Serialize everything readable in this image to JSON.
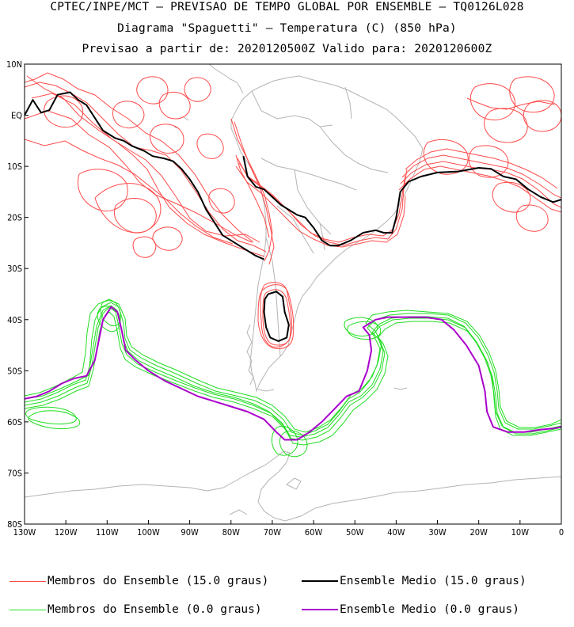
{
  "titles": {
    "line1": "CPTEC/INPE/MCT – PREVISAO DE TEMPO GLOBAL POR ENSEMBLE – TQ0126L028",
    "line2": "Diagrama \"Spaguetti\" – Temperatura (C) (850 hPa)",
    "line3": "Previsao a partir de: 2020120500Z  Valido para: 2020120600Z"
  },
  "map": {
    "lon_range": [
      -130,
      0
    ],
    "lat_range": [
      -80,
      10
    ],
    "lon_ticks": [
      {
        "value": -130,
        "label": "130W"
      },
      {
        "value": -120,
        "label": "120W"
      },
      {
        "value": -110,
        "label": "110W"
      },
      {
        "value": -100,
        "label": "100W"
      },
      {
        "value": -90,
        "label": "90W"
      },
      {
        "value": -80,
        "label": "80W"
      },
      {
        "value": -70,
        "label": "70W"
      },
      {
        "value": -60,
        "label": "60W"
      },
      {
        "value": -50,
        "label": "50W"
      },
      {
        "value": -40,
        "label": "40W"
      },
      {
        "value": -30,
        "label": "30W"
      },
      {
        "value": -20,
        "label": "20W"
      },
      {
        "value": -10,
        "label": "10W"
      },
      {
        "value": 0,
        "label": "0"
      }
    ],
    "lat_ticks": [
      {
        "value": 10,
        "label": "10N"
      },
      {
        "value": 0,
        "label": "EQ"
      },
      {
        "value": -10,
        "label": "10S"
      },
      {
        "value": -20,
        "label": "20S"
      },
      {
        "value": -30,
        "label": "30S"
      },
      {
        "value": -40,
        "label": "40S"
      },
      {
        "value": -50,
        "label": "50S"
      },
      {
        "value": -60,
        "label": "60S"
      },
      {
        "value": -70,
        "label": "70S"
      },
      {
        "value": -80,
        "label": "80S"
      }
    ],
    "colors": {
      "members_15": "#ff4a4a",
      "mean_15": "#000000",
      "members_0": "#22dd22",
      "mean_0": "#aa00cc",
      "coast": "#b4b4b4"
    },
    "mean_15": [
      [
        -130,
        0
      ],
      [
        -128,
        3
      ],
      [
        -126,
        0.5
      ],
      [
        -124,
        1
      ],
      [
        -122,
        4
      ],
      [
        -119,
        4.5
      ],
      [
        -117,
        3
      ],
      [
        -115,
        2
      ],
      [
        -113,
        -0.5
      ],
      [
        -111,
        -3
      ],
      [
        -108,
        -4.5
      ],
      [
        -106,
        -5
      ],
      [
        -104,
        -6
      ],
      [
        -101,
        -7
      ],
      [
        -99,
        -8
      ],
      [
        -96,
        -8.5
      ],
      [
        -94,
        -9
      ],
      [
        -92,
        -10.5
      ],
      [
        -90,
        -12.5
      ],
      [
        -88,
        -15
      ],
      [
        -86,
        -18.5
      ],
      [
        -84,
        -21
      ],
      [
        -82,
        -23.5
      ],
      [
        -80,
        -24.5
      ],
      [
        -78,
        -25.5
      ],
      [
        -76,
        -26.5
      ],
      [
        -74,
        -27.5
      ],
      [
        -72,
        -28.2
      ]
    ],
    "mean_15_b": [
      [
        -77,
        -8
      ],
      [
        -76,
        -12
      ],
      [
        -74,
        -14
      ],
      [
        -72,
        -14.5
      ],
      [
        -70,
        -16
      ],
      [
        -68,
        -17.5
      ],
      [
        -66,
        -18.5
      ],
      [
        -64,
        -19.5
      ],
      [
        -62,
        -20
      ],
      [
        -60,
        -22
      ],
      [
        -58,
        -24.5
      ],
      [
        -56,
        -25.5
      ],
      [
        -54,
        -25.5
      ],
      [
        -51,
        -24.5
      ],
      [
        -48,
        -23
      ],
      [
        -45,
        -22.5
      ],
      [
        -43,
        -23
      ],
      [
        -41,
        -23
      ],
      [
        -40,
        -20
      ],
      [
        -39,
        -15
      ],
      [
        -37,
        -13
      ],
      [
        -34,
        -12
      ],
      [
        -30,
        -11.2
      ],
      [
        -25,
        -11
      ],
      [
        -20,
        -10.3
      ],
      [
        -17,
        -10.5
      ],
      [
        -14,
        -12
      ],
      [
        -11,
        -12.5
      ],
      [
        -8,
        -14.5
      ],
      [
        -5,
        -16
      ],
      [
        -2,
        -17
      ],
      [
        0,
        -16.5
      ]
    ],
    "mean_15_loop": [
      [
        -71,
        -35
      ],
      [
        -69,
        -34.5
      ],
      [
        -67.5,
        -35.5
      ],
      [
        -67,
        -38.5
      ],
      [
        -66,
        -41
      ],
      [
        -66.5,
        -43.5
      ],
      [
        -68.5,
        -44.2
      ],
      [
        -70.5,
        -43.5
      ],
      [
        -71.5,
        -41.5
      ],
      [
        -72,
        -38.5
      ],
      [
        -71.8,
        -36
      ],
      [
        -71,
        -35
      ]
    ],
    "mean_0": [
      [
        -130,
        -55.5
      ],
      [
        -127,
        -55
      ],
      [
        -124,
        -54
      ],
      [
        -121,
        -52.5
      ],
      [
        -118,
        -51.5
      ],
      [
        -115,
        -51
      ],
      [
        -113,
        -48
      ],
      [
        -112,
        -44
      ],
      [
        -111,
        -40
      ],
      [
        -109,
        -37.5
      ],
      [
        -107.5,
        -38.5
      ],
      [
        -106.5,
        -42
      ],
      [
        -105.5,
        -46
      ],
      [
        -103,
        -48
      ],
      [
        -100,
        -50
      ],
      [
        -96,
        -52
      ],
      [
        -92,
        -53.5
      ],
      [
        -88,
        -55
      ],
      [
        -84,
        -56
      ],
      [
        -80,
        -57
      ],
      [
        -76,
        -58
      ],
      [
        -72,
        -59.5
      ],
      [
        -69,
        -62
      ],
      [
        -67,
        -63.5
      ],
      [
        -64,
        -63.5
      ],
      [
        -61,
        -62
      ],
      [
        -58,
        -60
      ],
      [
        -55,
        -57.5
      ],
      [
        -52,
        -55
      ],
      [
        -49,
        -54
      ],
      [
        -47,
        -50
      ],
      [
        -46,
        -46
      ],
      [
        -46.5,
        -43
      ],
      [
        -47.5,
        -42
      ],
      [
        -48,
        -41.5
      ],
      [
        -47,
        -41
      ],
      [
        -45,
        -40
      ],
      [
        -42,
        -39.5
      ],
      [
        -38,
        -39.5
      ],
      [
        -33,
        -39.5
      ],
      [
        -29,
        -40
      ],
      [
        -26,
        -42
      ],
      [
        -23,
        -45
      ],
      [
        -20,
        -49
      ],
      [
        -18.5,
        -54
      ],
      [
        -18,
        -58
      ],
      [
        -16.5,
        -61
      ],
      [
        -13,
        -62
      ],
      [
        -9,
        -62
      ],
      [
        -5,
        -61.5
      ],
      [
        -2,
        -61.3
      ],
      [
        0,
        -61
      ]
    ],
    "legend": [
      {
        "label": "Membros do Ensemble (15.0 graus)",
        "color": "#ff4a4a",
        "width": 1
      },
      {
        "label": "Ensemble Medio (15.0 graus)",
        "color": "#000000",
        "width": 2
      },
      {
        "label": "Membros do Ensemble (0.0 graus)",
        "color": "#22dd22",
        "width": 1
      },
      {
        "label": "Ensemble Medio (0.0 graus)",
        "color": "#aa00cc",
        "width": 2
      }
    ]
  }
}
